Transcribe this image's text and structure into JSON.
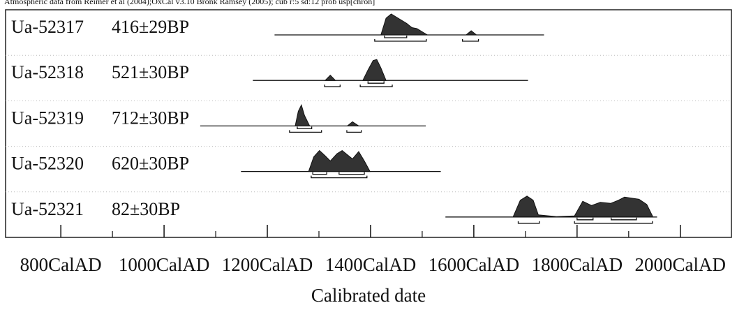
{
  "chart_data": {
    "type": "multiplot",
    "title": "Atmospheric data from Reimer et al (2004);OxCal v3.10 Bronk Ramsey (2005); cub r:5 sd:12 prob usp[chron]",
    "x_label": "Calibrated date",
    "xlim": [
      693,
      2099
    ],
    "xticks": [
      {
        "value": 800,
        "label": "800CalAD"
      },
      {
        "value": 1000,
        "label": "1000CalAD"
      },
      {
        "value": 1200,
        "label": "1200CalAD"
      },
      {
        "value": 1400,
        "label": "1400CalAD"
      },
      {
        "value": 1600,
        "label": "1600CalAD"
      },
      {
        "value": 1800,
        "label": "1800CalAD"
      },
      {
        "value": 2000,
        "label": "2000CalAD"
      }
    ],
    "xticks_minor": [
      900,
      1100,
      1300,
      1500,
      1700,
      1900
    ],
    "color": "#333333",
    "samples": [
      {
        "name": "Ua-52317",
        "date": "416±29BP",
        "range": [
          1214,
          1736
        ],
        "x": [
          1420,
          1430,
          1440,
          1450,
          1460,
          1470,
          1480,
          1490,
          1500,
          1510,
          null,
          1585,
          1595,
          1605
        ],
        "density": [
          0,
          0.8,
          1,
          0.85,
          0.7,
          0.55,
          0.35,
          0.3,
          0.15,
          0,
          null,
          0,
          0.2,
          0
        ],
        "ranges_68": [
          [
            1427,
            1470
          ]
        ],
        "ranges_95": [
          [
            1408,
            1508
          ],
          [
            1578,
            1609
          ]
        ]
      },
      {
        "name": "Ua-52318",
        "date": "521±30BP",
        "range": [
          1172,
          1705
        ],
        "x": [
          1312,
          1322,
          1332,
          null,
          1385,
          1395,
          1405,
          1412,
          1420,
          1430
        ],
        "density": [
          0,
          0.25,
          0,
          null,
          0,
          0.5,
          0.95,
          1,
          0.6,
          0
        ],
        "ranges_68": [
          [
            1395,
            1426
          ]
        ],
        "ranges_95": [
          [
            1311,
            1341
          ],
          [
            1380,
            1442
          ]
        ]
      },
      {
        "name": "Ua-52319",
        "date": "712±30BP",
        "range": [
          1070,
          1507
        ],
        "x": [
          1254,
          1260,
          1266,
          1272,
          1282,
          null,
          1355,
          1365,
          1377
        ],
        "density": [
          0,
          0.7,
          1,
          0.5,
          0,
          null,
          0,
          0.2,
          0
        ],
        "ranges_68": [
          [
            1258,
            1286
          ]
        ],
        "ranges_95": [
          [
            1243,
            1305
          ],
          [
            1354,
            1382
          ]
        ]
      },
      {
        "name": "Ua-52320",
        "date": "620±30BP",
        "range": [
          1149,
          1536
        ],
        "x": [
          1280,
          1290,
          1301,
          1312,
          1322,
          1335,
          1345,
          1355,
          1365,
          1377,
          1388,
          1399
        ],
        "density": [
          0,
          0.7,
          1,
          0.75,
          0.5,
          0.85,
          1,
          0.8,
          0.6,
          0.95,
          0.5,
          0
        ],
        "ranges_68": [
          [
            1288,
            1315
          ],
          [
            1339,
            1388
          ]
        ],
        "ranges_95": [
          [
            1285,
            1393
          ]
        ]
      },
      {
        "name": "Ua-52321",
        "date": "82±30BP",
        "range": [
          1545,
          1955
        ],
        "x": [
          1676,
          1690,
          1703,
          1715,
          1725,
          1760,
          1795,
          1811,
          1828,
          1845,
          1865,
          1880,
          1892,
          1905,
          1920,
          1935,
          1946
        ],
        "density": [
          0,
          0.8,
          1,
          0.8,
          0.1,
          0.02,
          0.05,
          0.75,
          0.55,
          0.7,
          0.65,
          0.8,
          0.95,
          0.9,
          0.85,
          0.6,
          0.05
        ],
        "ranges_68": [
          [
            1800,
            1831
          ],
          [
            1866,
            1915
          ]
        ],
        "ranges_95": [
          [
            1686,
            1727
          ],
          [
            1795,
            1946
          ]
        ]
      }
    ]
  }
}
